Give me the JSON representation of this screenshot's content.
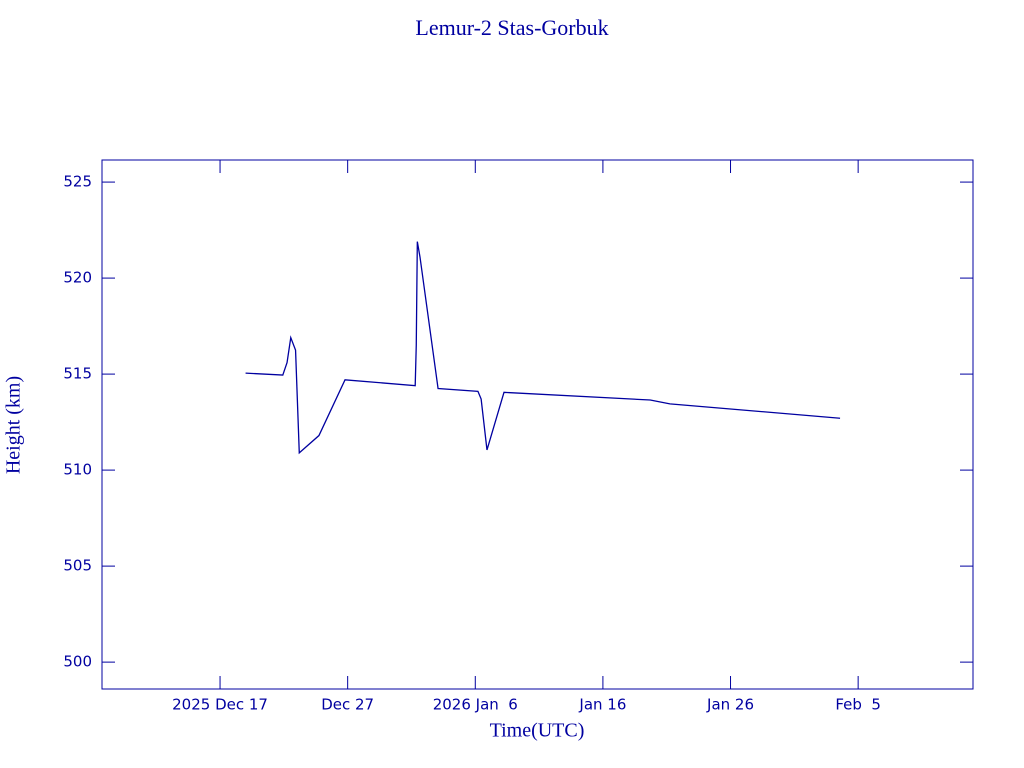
{
  "chart_data": {
    "type": "line",
    "title": "Lemur-2 Stas-Gorbuk",
    "x_label": "Time(UTC)",
    "y_label": "Height (km)",
    "x": [
      "2025-12-19T00:00",
      "2025-12-21T22:00",
      "2025-12-22T06:00",
      "2025-12-22T13:00",
      "2025-12-22T22:00",
      "2025-12-23T05:00",
      "2025-12-24T18:00",
      "2025-12-26T19:00",
      "2026-01-01T07:00",
      "2026-01-01T09:00",
      "2026-01-01T11:00",
      "2026-01-01T16:00",
      "2026-01-03T02:00",
      "2026-01-06T05:00",
      "2026-01-06T11:00",
      "2026-01-06T22:00",
      "2026-01-08T06:00",
      "2026-01-19T17:00",
      "2026-01-21T06:00",
      "2026-02-03T14:00"
    ],
    "series": [
      {
        "color": "#0000a0",
        "values": [
          515.05,
          514.95,
          515.6,
          516.9,
          516.25,
          510.9,
          511.8,
          514.7,
          514.4,
          516.5,
          521.9,
          521.1,
          514.25,
          514.1,
          513.7,
          511.05,
          514.05,
          513.65,
          513.45,
          512.7
        ]
      }
    ],
    "xlim": [
      "2025-12-07T18:00",
      "2026-02-14T00:00"
    ],
    "xticks": [
      {
        "value": "2025-12-17",
        "label": "2025 Dec 17"
      },
      {
        "value": "2025-12-27",
        "label": "Dec 27"
      },
      {
        "value": "2026-01-06",
        "label": "2026 Jan  6"
      },
      {
        "value": "2026-01-16",
        "label": "Jan 16"
      },
      {
        "value": "2026-01-26",
        "label": "Jan 26"
      },
      {
        "value": "2026-02-05",
        "label": "Feb  5"
      }
    ],
    "ylim": [
      498.6,
      526.15
    ],
    "yticks": [
      500,
      505,
      510,
      515,
      520,
      525
    ]
  }
}
